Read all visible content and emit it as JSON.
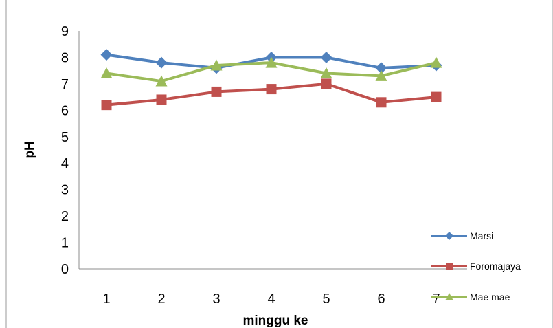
{
  "chart_data": {
    "type": "line",
    "title": "",
    "xlabel": "minggu ke",
    "ylabel": "pH",
    "categories": [
      "1",
      "2",
      "3",
      "4",
      "5",
      "6",
      "7"
    ],
    "y_ticks": [
      "0",
      "1",
      "2",
      "3",
      "4",
      "5",
      "6",
      "7",
      "8",
      "9"
    ],
    "ylim": [
      0,
      9
    ],
    "grid": false,
    "legend_position": "right",
    "series": [
      {
        "name": "Marsi",
        "marker": "diamond",
        "color": "#4F81BD",
        "values": [
          8.1,
          7.8,
          7.6,
          8.0,
          8.0,
          7.6,
          7.7
        ]
      },
      {
        "name": "Foromajaya",
        "marker": "square",
        "color": "#C0504D",
        "values": [
          6.2,
          6.4,
          6.7,
          6.8,
          7.0,
          6.3,
          6.5
        ]
      },
      {
        "name": "Mae mae",
        "marker": "triangle",
        "color": "#9BBB59",
        "values": [
          7.4,
          7.1,
          7.7,
          7.8,
          7.4,
          7.3,
          7.8
        ]
      }
    ]
  }
}
